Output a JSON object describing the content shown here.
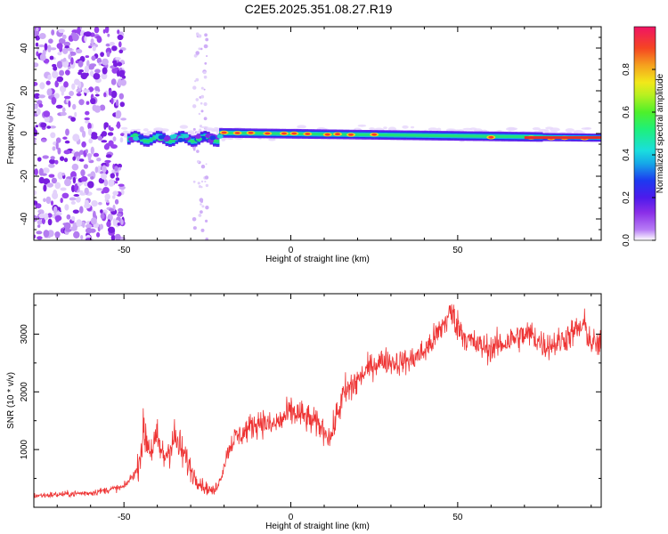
{
  "title": "C2E5.2025.351.08.27.R19",
  "chart_data": [
    {
      "type": "heatmap",
      "xlabel": "Height of straight line (km)",
      "ylabel": "Frequency (Hz)",
      "xlim": [
        -77,
        93
      ],
      "ylim": [
        -50,
        50
      ],
      "xticks": [
        -50,
        0,
        50
      ],
      "yticks": [
        -40,
        -20,
        0,
        20,
        40
      ],
      "colorbar": {
        "label": "Normalized spectral amplitude",
        "range": [
          0.0,
          1.0
        ],
        "ticks": [
          "0.0",
          "0.2",
          "0.4",
          "0.6",
          "0.8"
        ]
      }
    },
    {
      "type": "line",
      "xlabel": "Height of straight line (km)",
      "ylabel": "SNR (10 * v/v)",
      "xlim": [
        -77,
        93
      ],
      "ylim": [
        0,
        3700
      ],
      "xticks": [
        -50,
        0,
        50
      ],
      "yticks": [
        1000,
        2000,
        3000
      ],
      "color": "#ee3333",
      "series": [
        {
          "x": [
            -77,
            -70,
            -60,
            -50,
            -46,
            -44,
            -42,
            -40,
            -38,
            -35,
            -32,
            -29,
            -26,
            -23,
            -21,
            -19,
            -17,
            -15,
            -12,
            -9,
            -6,
            -3,
            0,
            3,
            6,
            9,
            12,
            14,
            16,
            20,
            24,
            28,
            32,
            36,
            40,
            44,
            48,
            50,
            53,
            56,
            60,
            64,
            68,
            72,
            76,
            80,
            84,
            88,
            90,
            93
          ],
          "y": [
            200,
            220,
            250,
            350,
            650,
            1300,
            1000,
            1150,
            850,
            1200,
            900,
            550,
            350,
            270,
            500,
            950,
            1200,
            1250,
            1400,
            1500,
            1400,
            1500,
            1650,
            1600,
            1500,
            1400,
            1200,
            1650,
            1950,
            2200,
            2450,
            2550,
            2500,
            2550,
            2700,
            3000,
            3380,
            3150,
            2900,
            2800,
            2750,
            2850,
            2950,
            3000,
            2800,
            2850,
            3000,
            3150,
            2850,
            2800
          ]
        }
      ]
    }
  ]
}
